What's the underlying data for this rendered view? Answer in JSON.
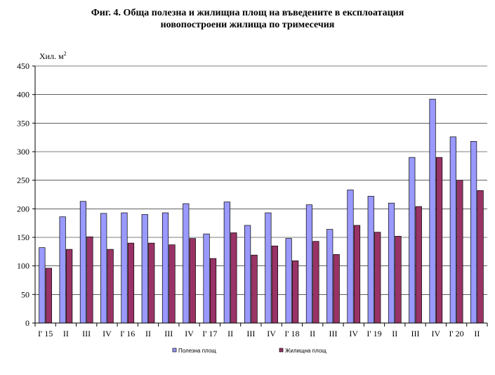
{
  "chart_data": {
    "type": "bar",
    "title_line1": "Фиг. 4. Обща полезна и жилищна площ на въведените в експлоатация",
    "title_line2": "новопостроени жилища по тримесечия",
    "ylabel": "Хил. м",
    "ylabel_sup": "2",
    "xlabel": "",
    "ylim": [
      0,
      450
    ],
    "yticks": [
      "0",
      "50",
      "100",
      "150",
      "200",
      "250",
      "300",
      "350",
      "400",
      "450"
    ],
    "grid": true,
    "legend_position": "bottom",
    "categories": [
      "I' 15",
      "II",
      "III",
      "IV",
      "I' 16",
      "II",
      "III",
      "IV",
      "I' 17",
      "II",
      "III",
      "IV",
      "I' 18",
      "II",
      "III",
      "IV",
      "I' 19",
      "II",
      "III",
      "IV",
      "I' 20",
      "II"
    ],
    "series": [
      {
        "name": "Полезна площ",
        "color": "#9999ff",
        "values": [
          132,
          186,
          213,
          192,
          193,
          190,
          193,
          209,
          156,
          212,
          171,
          193,
          148,
          207,
          164,
          233,
          222,
          210,
          290,
          392,
          326,
          318
        ]
      },
      {
        "name": "Жилищна площ",
        "color": "#993366",
        "values": [
          96,
          129,
          151,
          129,
          140,
          140,
          137,
          148,
          113,
          158,
          119,
          135,
          109,
          143,
          120,
          171,
          159,
          152,
          204,
          290,
          250,
          232
        ]
      }
    ]
  }
}
